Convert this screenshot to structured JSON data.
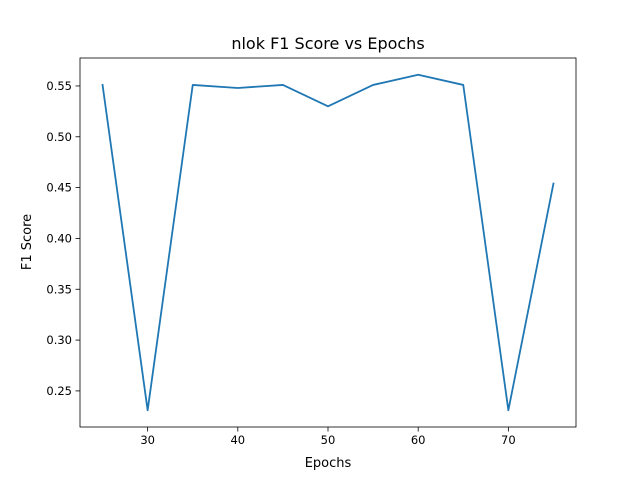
{
  "chart_data": {
    "type": "line",
    "title": "nlok F1 Score vs Epochs",
    "xlabel": "Epochs",
    "ylabel": "F1 Score",
    "xlim": [
      22.5,
      77.5
    ],
    "ylim": [
      0.2145,
      0.5775
    ],
    "xticks": [
      30,
      40,
      50,
      60,
      70
    ],
    "yticks": [
      0.25,
      0.3,
      0.35,
      0.4,
      0.45,
      0.5,
      0.55
    ],
    "xtick_labels": [
      "30",
      "40",
      "50",
      "60",
      "70"
    ],
    "ytick_labels": [
      "0.25",
      "0.30",
      "0.35",
      "0.40",
      "0.45",
      "0.50",
      "0.55"
    ],
    "grid": false,
    "series": [
      {
        "color": "#1f77b4",
        "x": [
          25,
          30,
          35,
          40,
          45,
          50,
          55,
          60,
          65,
          70,
          75
        ],
        "y": [
          0.551,
          0.231,
          0.551,
          0.548,
          0.551,
          0.53,
          0.551,
          0.561,
          0.551,
          0.231,
          0.454
        ]
      }
    ]
  }
}
